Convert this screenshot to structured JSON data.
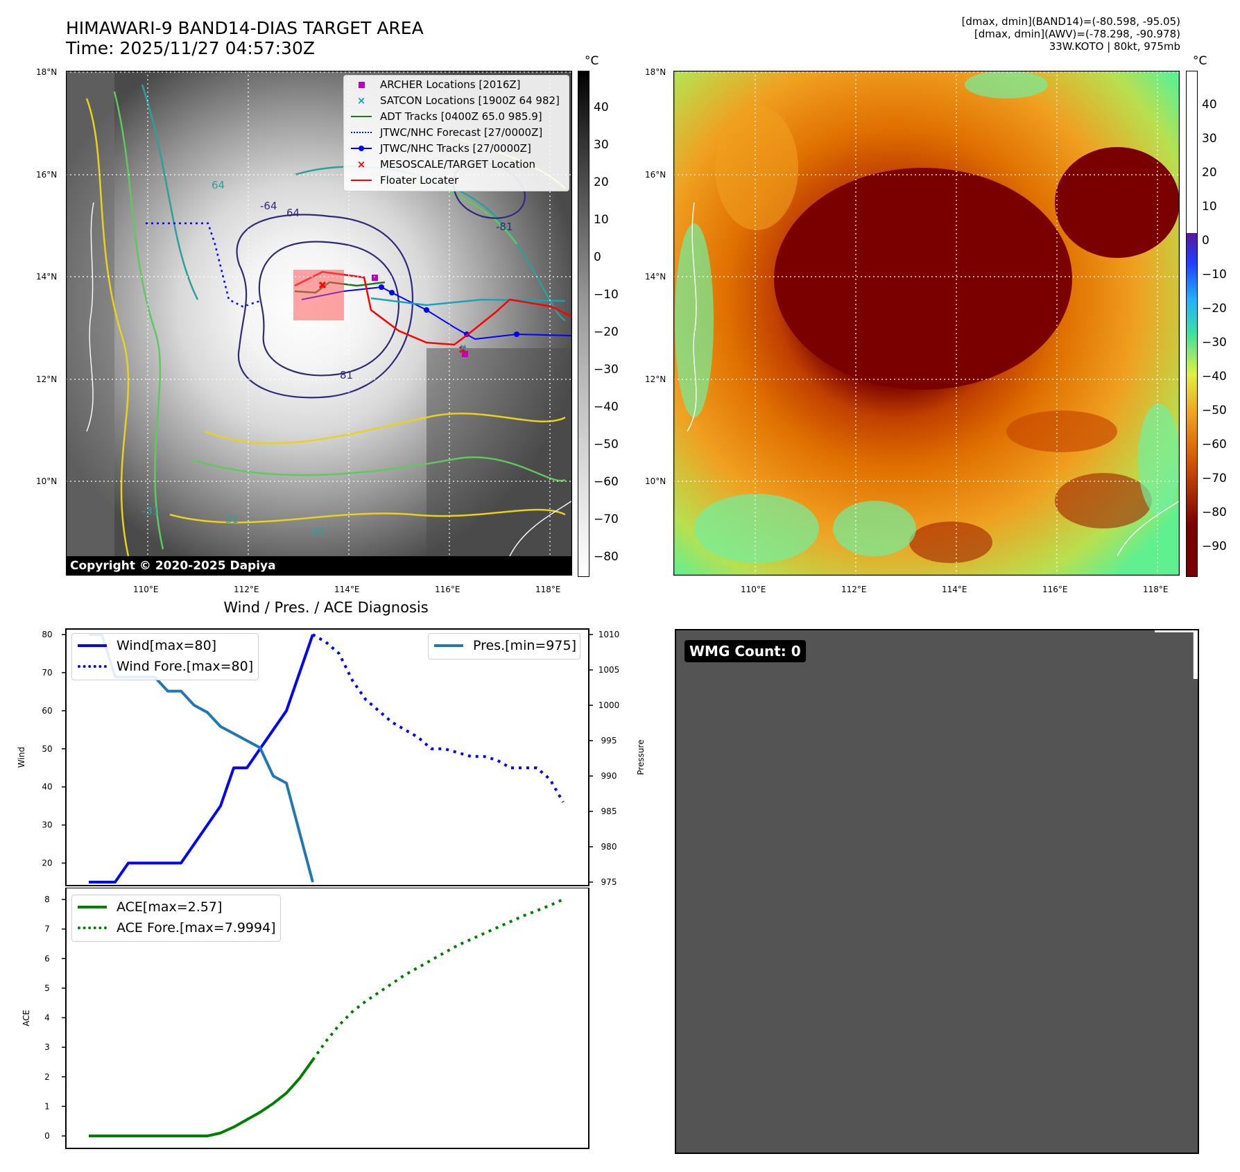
{
  "header": {
    "title_line1": "HIMAWARI-9 BAND14-DIAS TARGET AREA",
    "title_line2": "Time: 2025/11/27 04:57:30Z",
    "info_line1": "[dmax, dmin](BAND14)=(-80.598, -95.05)",
    "info_line2": "[dmax, dmin](AWV)=(-78.298, -90.978)",
    "info_line3": "33W.KOTO | 80kt, 975mb"
  },
  "map_left": {
    "lat_ticks": [
      "18°N",
      "16°N",
      "14°N",
      "12°N",
      "10°N"
    ],
    "lon_ticks": [
      "110°E",
      "112°E",
      "114°E",
      "116°E",
      "118°E"
    ],
    "colorbar_unit": "°C",
    "colorbar_ticks": [
      "40",
      "30",
      "20",
      "10",
      "0",
      "−10",
      "−20",
      "−30",
      "−40",
      "−50",
      "−60",
      "−70",
      "−80"
    ],
    "contour_labels": [
      "-64",
      "64",
      "-81",
      "81",
      "-31",
      "31",
      "64",
      "-81"
    ],
    "copyright": "Copyright © 2020-2025 Dapiya",
    "legend": [
      {
        "label": "ARCHER Locations [2016Z]",
        "marker": "square",
        "color": "#c000c0"
      },
      {
        "label": "SATCON Locations [1900Z 64 982]",
        "marker": "x",
        "color": "#17a2b8"
      },
      {
        "label": "ADT Tracks [0400Z 65.0 985.9]",
        "marker": "line",
        "color": "#1a7a1a"
      },
      {
        "label": "JTWC/NHC Forecast [27/0000Z]",
        "marker": "dotted",
        "color": "#0000ff"
      },
      {
        "label": "JTWC/NHC Tracks [27/0000Z]",
        "marker": "line-dot",
        "color": "#0000ff"
      },
      {
        "label": "MESOSCALE/TARGET Location",
        "marker": "x",
        "color": "#ff0000"
      },
      {
        "label": "Floater Locater",
        "marker": "line",
        "color": "#ff0000"
      }
    ]
  },
  "map_right": {
    "lat_ticks": [
      "18°N",
      "16°N",
      "14°N",
      "12°N",
      "10°N"
    ],
    "lon_ticks": [
      "110°E",
      "112°E",
      "114°E",
      "116°E",
      "118°E"
    ],
    "colorbar_unit": "°C",
    "colorbar_ticks": [
      "40",
      "30",
      "20",
      "10",
      "0",
      "−10",
      "−20",
      "−30",
      "−40",
      "−50",
      "−60",
      "−70",
      "−80",
      "−90"
    ]
  },
  "chart_title": "Wind / Pres. / ACE Diagnosis",
  "wmg": {
    "label": "WMG Count: 0"
  },
  "chart_data": [
    {
      "type": "line",
      "xlabel": "",
      "ylabel": "Wind",
      "y2label": "Pressure",
      "ylim": [
        15,
        80
      ],
      "yticks": [
        "20",
        "30",
        "40",
        "50",
        "60",
        "70",
        "80"
      ],
      "y2lim": [
        975,
        1010
      ],
      "y2ticks": [
        "975",
        "980",
        "985",
        "990",
        "995",
        "1000",
        "1005",
        "1010"
      ],
      "series": [
        {
          "name": "Wind[max=80]",
          "color": "#0000ff",
          "style": "solid",
          "axis": "left",
          "x": [
            0,
            2,
            3,
            4,
            5,
            6,
            7,
            8,
            9,
            10,
            11,
            12,
            13,
            14,
            15,
            16,
            17
          ],
          "values": [
            15,
            15,
            20,
            20,
            20,
            20,
            20,
            25,
            30,
            35,
            45,
            45,
            50,
            55,
            60,
            70,
            80
          ]
        },
        {
          "name": "Wind Fore.[max=80]",
          "color": "#0000ff",
          "style": "dotted",
          "axis": "left",
          "x": [
            17,
            18,
            19,
            20,
            21,
            22,
            23,
            24,
            25,
            26,
            27,
            28,
            29,
            30,
            31,
            32,
            33,
            34,
            35,
            36
          ],
          "values": [
            80,
            78,
            75,
            68,
            63,
            60,
            57,
            55,
            53,
            50,
            50,
            49,
            48,
            48,
            47,
            45,
            45,
            45,
            42,
            36
          ]
        },
        {
          "name": "Pres.[min=975]",
          "color": "#1f77b4",
          "style": "solid",
          "axis": "right",
          "x": [
            0,
            1,
            2,
            3,
            4,
            5,
            6,
            7,
            8,
            9,
            10,
            11,
            12,
            13,
            14,
            15,
            16,
            17
          ],
          "values": [
            1010,
            1010,
            1004,
            1004,
            1004,
            1004,
            1002,
            1002,
            1000,
            999,
            997,
            996,
            995,
            994,
            990,
            989,
            982,
            975
          ]
        }
      ]
    },
    {
      "type": "line",
      "xlabel": "",
      "ylabel": "ACE",
      "ylim": [
        0,
        8
      ],
      "yticks": [
        "0",
        "1",
        "2",
        "3",
        "4",
        "5",
        "6",
        "7",
        "8"
      ],
      "series": [
        {
          "name": "ACE[max=2.57]",
          "color": "#008000",
          "style": "solid",
          "x": [
            0,
            3,
            6,
            9,
            10,
            11,
            12,
            13,
            14,
            15,
            16,
            17
          ],
          "values": [
            0,
            0,
            0,
            0,
            0.1,
            0.3,
            0.55,
            0.8,
            1.1,
            1.45,
            1.95,
            2.57
          ]
        },
        {
          "name": "ACE Fore.[max=7.9994]",
          "color": "#008000",
          "style": "dotted",
          "x": [
            17,
            18,
            19,
            20,
            21,
            22,
            23,
            24,
            25,
            26,
            27,
            28,
            29,
            30,
            31,
            32,
            33,
            34,
            35,
            36
          ],
          "values": [
            2.57,
            3.2,
            3.75,
            4.2,
            4.55,
            4.85,
            5.15,
            5.45,
            5.7,
            5.95,
            6.2,
            6.45,
            6.65,
            6.85,
            7.05,
            7.25,
            7.45,
            7.62,
            7.8,
            7.9994
          ]
        }
      ]
    }
  ]
}
